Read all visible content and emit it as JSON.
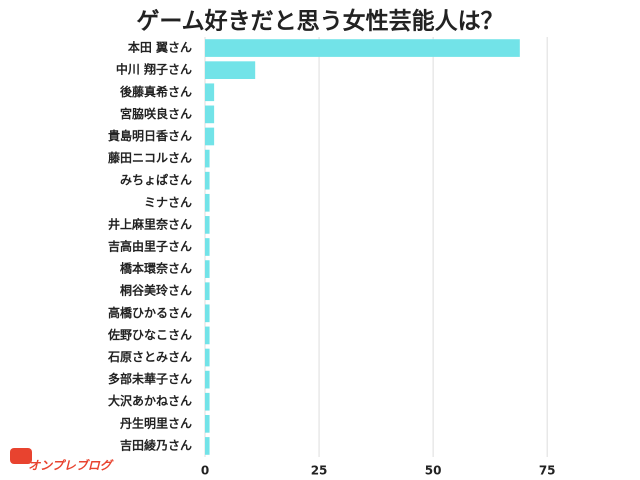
{
  "chart_data": {
    "type": "barh",
    "title": "ゲーム好きだと思う女性芸能人は？",
    "categories": [
      "本田 翼さん",
      "中川 翔子さん",
      "後藤真希さん",
      "宮脇咲良さん",
      "貴島明日香さん",
      "藤田ニコルさん",
      "みちょぱさん",
      "ミナさん",
      "井上麻里奈さん",
      "吉高由里子さん",
      "橋本環奈さん",
      "桐谷美玲さん",
      "高橋ひかるさん",
      "佐野ひなこさん",
      "石原さとみさん",
      "多部未華子さん",
      "大沢あかねさん",
      "丹生明里さん",
      "吉田綾乃さん"
    ],
    "values": [
      69,
      11,
      2,
      2,
      2,
      1,
      1,
      1,
      1,
      1,
      1,
      1,
      1,
      1,
      1,
      1,
      1,
      1,
      1
    ],
    "color": "#72e3e8",
    "xlim": [
      0,
      80
    ],
    "xticks": [
      0,
      25,
      50,
      75
    ],
    "grid": true
  },
  "logo": "オンプレブログ"
}
